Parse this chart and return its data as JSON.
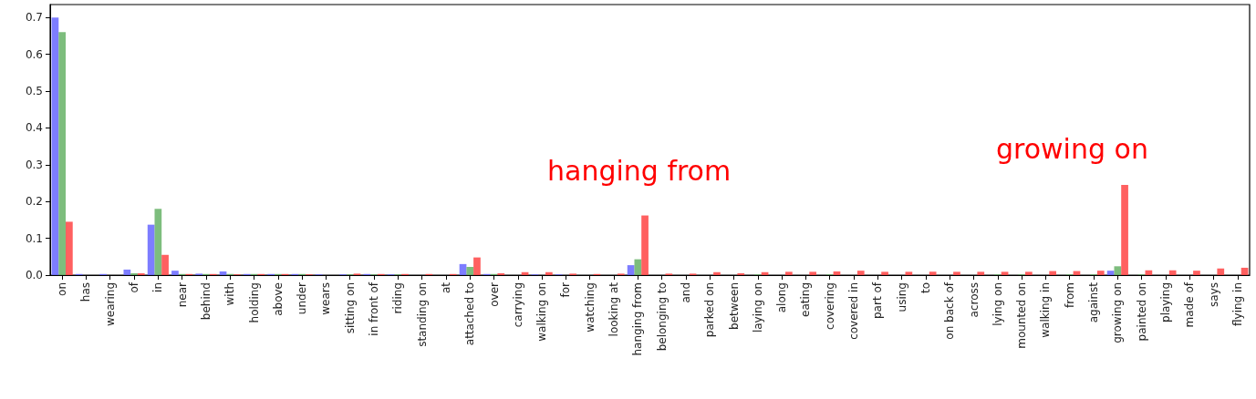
{
  "chart_data": {
    "type": "bar",
    "categories": [
      "on",
      "has",
      "wearing",
      "of",
      "in",
      "near",
      "behind",
      "with",
      "holding",
      "above",
      "under",
      "wears",
      "sitting on",
      "in front of",
      "riding",
      "standing on",
      "at",
      "attached to",
      "over",
      "carrying",
      "walking on",
      "for",
      "watching",
      "looking at",
      "hanging from",
      "belonging to",
      "and",
      "parked on",
      "between",
      "laying on",
      "along",
      "eating",
      "covering",
      "covered in",
      "part of",
      "using",
      "to",
      "on back of",
      "across",
      "lying on",
      "mounted on",
      "walking in",
      "from",
      "against",
      "growing on",
      "painted on",
      "playing",
      "made of",
      "says",
      "flying in"
    ],
    "series": [
      {
        "color": "#6666ff",
        "values": [
          0.7,
          0.003,
          0.003,
          0.015,
          0.137,
          0.012,
          0.004,
          0.01,
          0.003,
          0.003,
          0.003,
          0.002,
          0.002,
          0.003,
          0.002,
          0,
          0,
          0.03,
          0.003,
          0,
          0.002,
          0.002,
          0,
          0,
          0.027,
          0,
          0,
          0,
          0,
          0,
          0,
          0,
          0,
          0,
          0,
          0,
          0,
          0,
          0,
          0,
          0,
          0,
          0,
          0,
          0.012,
          0,
          0,
          0,
          0,
          0
        ]
      },
      {
        "color": "#66b266",
        "values": [
          0.66,
          0,
          0,
          0.005,
          0.18,
          0.003,
          0.003,
          0.003,
          0.003,
          0.003,
          0.003,
          0,
          0.002,
          0.002,
          0.002,
          0,
          0,
          0.022,
          0.003,
          0,
          0,
          0,
          0,
          0,
          0.043,
          0,
          0,
          0,
          0,
          0.002,
          0,
          0,
          0.002,
          0,
          0,
          0,
          0,
          0,
          0,
          0.002,
          0.002,
          0,
          0.002,
          0.002,
          0.024,
          0.002,
          0,
          0,
          0,
          0
        ]
      },
      {
        "color": "#ff4444",
        "values": [
          0.145,
          0,
          0,
          0.005,
          0.055,
          0.003,
          0.003,
          0.002,
          0.003,
          0.003,
          0.002,
          0,
          0.004,
          0.003,
          0.003,
          0.003,
          0.003,
          0.048,
          0.005,
          0.008,
          0.008,
          0.004,
          0.003,
          0.004,
          0.162,
          0.004,
          0.004,
          0.008,
          0.005,
          0.008,
          0.009,
          0.009,
          0.01,
          0.012,
          0.009,
          0.009,
          0.009,
          0.009,
          0.009,
          0.009,
          0.009,
          0.011,
          0.011,
          0.012,
          0.245,
          0.013,
          0.013,
          0.012,
          0.018,
          0.02
        ]
      }
    ],
    "ylim": [
      0,
      0.735
    ],
    "yticks": [
      {
        "value": 0,
        "label": "0.0"
      },
      0.1,
      0.2,
      0.3,
      0.4,
      0.5,
      0.6,
      0.7
    ],
    "grid": false,
    "annotations": [
      "hanging from",
      "growing on"
    ]
  }
}
